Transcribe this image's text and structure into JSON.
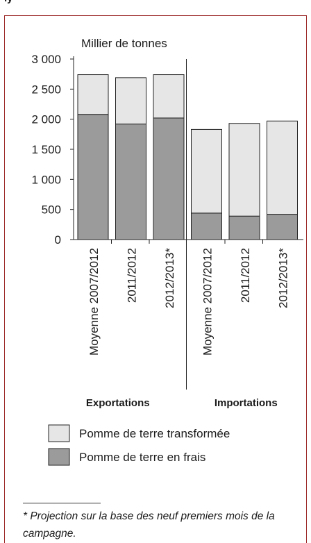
{
  "header_fragment": "ly",
  "chart_data": {
    "type": "bar",
    "stacked": true,
    "ylabel": "Millier de tonnes",
    "ylim": [
      0,
      3000
    ],
    "yticks": [
      0,
      500,
      1000,
      1500,
      2000,
      2500,
      3000
    ],
    "ytick_labels": [
      "0",
      "500",
      "1 000",
      "1 500",
      "2 000",
      "2 500",
      "3 000"
    ],
    "groups": [
      "Exportations",
      "Importations"
    ],
    "categories": [
      "Moyenne 2007/2012",
      "2011/2012",
      "2012/2013*",
      "Moyenne 2007/2012",
      "2011/2012",
      "2012/2013*"
    ],
    "group_of_category": [
      0,
      0,
      0,
      1,
      1,
      1
    ],
    "series": [
      {
        "name": "Pomme de terre en frais",
        "color": "#9b9b9b",
        "values": [
          2080,
          1920,
          2020,
          440,
          390,
          420
        ]
      },
      {
        "name": "Pomme de terre transformée",
        "color": "#e6e6e6",
        "values": [
          660,
          770,
          720,
          1390,
          1540,
          1550
        ]
      }
    ],
    "grid": false,
    "legend_position": "bottom"
  },
  "footnote": "* Projection sur la base des neuf premiers mois de la campagne."
}
